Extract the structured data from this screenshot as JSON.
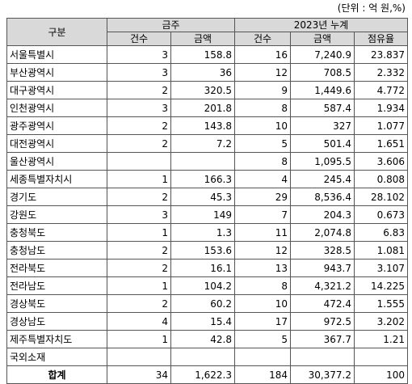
{
  "unit_note": "(단위 : 억 원,%)",
  "headers": {
    "region": "구분",
    "week_group": "금주",
    "cum_group": "2023년 누계",
    "cols": [
      "건수",
      "금액",
      "건수",
      "금액",
      "점유율"
    ]
  },
  "rows": [
    {
      "region": "서울특별시",
      "wk_count": "3",
      "wk_amount": "158.8",
      "cum_count": "16",
      "cum_amount": "7,240.9",
      "share": "23.837"
    },
    {
      "region": "부산광역시",
      "wk_count": "3",
      "wk_amount": "36",
      "cum_count": "12",
      "cum_amount": "708.5",
      "share": "2.332"
    },
    {
      "region": "대구광역시",
      "wk_count": "2",
      "wk_amount": "320.5",
      "cum_count": "9",
      "cum_amount": "1,449.6",
      "share": "4.772"
    },
    {
      "region": "인천광역시",
      "wk_count": "3",
      "wk_amount": "201.8",
      "cum_count": "8",
      "cum_amount": "587.4",
      "share": "1.934"
    },
    {
      "region": "광주광역시",
      "wk_count": "2",
      "wk_amount": "143.8",
      "cum_count": "10",
      "cum_amount": "327",
      "share": "1.077"
    },
    {
      "region": "대전광역시",
      "wk_count": "2",
      "wk_amount": "7.2",
      "cum_count": "5",
      "cum_amount": "501.4",
      "share": "1.651"
    },
    {
      "region": "울산광역시",
      "wk_count": "",
      "wk_amount": "",
      "cum_count": "8",
      "cum_amount": "1,095.5",
      "share": "3.606"
    },
    {
      "region": "세종특별자치시",
      "wk_count": "1",
      "wk_amount": "166.3",
      "cum_count": "4",
      "cum_amount": "245.4",
      "share": "0.808"
    },
    {
      "region": "경기도",
      "wk_count": "2",
      "wk_amount": "45.3",
      "cum_count": "29",
      "cum_amount": "8,536.4",
      "share": "28.102"
    },
    {
      "region": "강원도",
      "wk_count": "3",
      "wk_amount": "149",
      "cum_count": "7",
      "cum_amount": "204.3",
      "share": "0.673"
    },
    {
      "region": "충청북도",
      "wk_count": "1",
      "wk_amount": "1.3",
      "cum_count": "11",
      "cum_amount": "2,074.8",
      "share": "6.83"
    },
    {
      "region": "충청남도",
      "wk_count": "2",
      "wk_amount": "153.6",
      "cum_count": "12",
      "cum_amount": "328.5",
      "share": "1.081"
    },
    {
      "region": "전라북도",
      "wk_count": "2",
      "wk_amount": "16.1",
      "cum_count": "13",
      "cum_amount": "943.7",
      "share": "3.107"
    },
    {
      "region": "전라남도",
      "wk_count": "1",
      "wk_amount": "104.2",
      "cum_count": "8",
      "cum_amount": "4,321.2",
      "share": "14.225"
    },
    {
      "region": "경상북도",
      "wk_count": "2",
      "wk_amount": "60.2",
      "cum_count": "10",
      "cum_amount": "472.4",
      "share": "1.555"
    },
    {
      "region": "경상남도",
      "wk_count": "4",
      "wk_amount": "15.4",
      "cum_count": "17",
      "cum_amount": "972.5",
      "share": "3.202"
    },
    {
      "region": "제주특별자치도",
      "wk_count": "1",
      "wk_amount": "42.8",
      "cum_count": "5",
      "cum_amount": "367.7",
      "share": "1.21"
    },
    {
      "region": "국외소재",
      "wk_count": "",
      "wk_amount": "",
      "cum_count": "",
      "cum_amount": "",
      "share": ""
    }
  ],
  "total": {
    "region": "합계",
    "wk_count": "34",
    "wk_amount": "1,622.3",
    "cum_count": "184",
    "cum_amount": "30,377.2",
    "share": "100"
  }
}
